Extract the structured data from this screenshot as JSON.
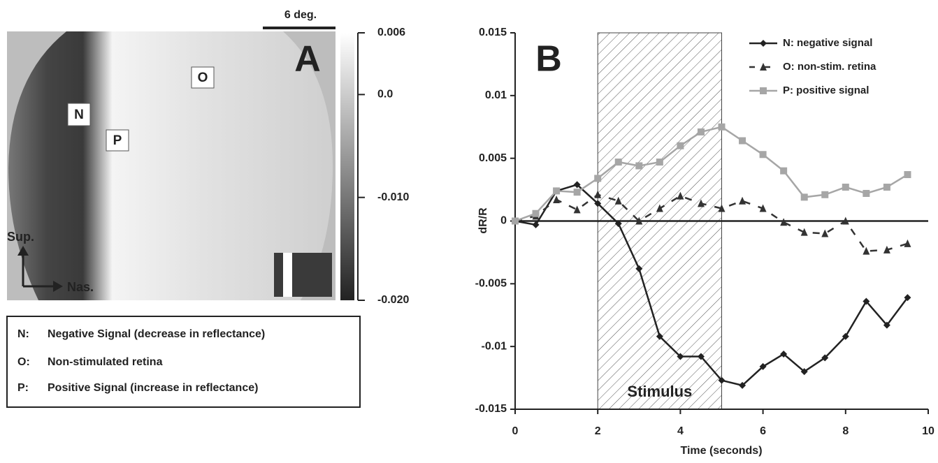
{
  "chart_data": [
    {
      "type": "image",
      "panel_label": "A",
      "scale_bar": "6 deg.",
      "region_labels": [
        "O",
        "N",
        "P"
      ],
      "orientation": [
        "Sup.",
        "Nas."
      ],
      "colorbar": {
        "ylim": [
          -0.02,
          0.006
        ],
        "yticks": [
          0.006,
          {
            "value": 0,
            "label": "0.0"
          },
          {
            "value": -0.01,
            "label": "-0.010"
          },
          {
            "value": -0.02,
            "label": "-0.020"
          }
        ]
      },
      "key": [
        {
          "code": "N:",
          "text": "Negative Signal (decrease in reflectance)"
        },
        {
          "code": "O:",
          "text": "Non-stimulated retina"
        },
        {
          "code": "P:",
          "text": "Positive Signal  (increase in reflectance)"
        }
      ]
    },
    {
      "type": "line",
      "panel_label": "B",
      "xlabel": "Time (seconds)",
      "ylabel": "dR/R",
      "x": [
        0,
        0.5,
        1,
        1.5,
        2,
        2.5,
        3,
        3.5,
        4,
        4.5,
        5,
        5.5,
        6,
        6.5,
        7,
        7.5,
        8,
        8.5,
        9,
        9.5
      ],
      "xlim": [
        0,
        10
      ],
      "xticks": [
        0,
        2,
        4,
        6,
        8,
        10
      ],
      "ylim": [
        -0.015,
        0.015
      ],
      "yticks": [
        0.015,
        0.01,
        0.005,
        0,
        -0.005,
        -0.01,
        -0.015
      ],
      "shaded_region": {
        "label": "Stimulus",
        "x": [
          2,
          5
        ]
      },
      "legend": "upper right",
      "series": [
        {
          "name": "N: negative signal",
          "color": "#222222",
          "marker": "diamond",
          "dashed": false,
          "values": [
            0,
            -0.0003,
            0.0024,
            0.0029,
            0.0014,
            -0.0002,
            -0.0038,
            -0.0092,
            -0.0108,
            -0.0108,
            -0.0127,
            -0.0131,
            -0.0116,
            -0.0106,
            -0.012,
            -0.0109,
            -0.0092,
            -0.0064,
            -0.0083,
            -0.0061
          ]
        },
        {
          "name": "O: non-stim. retina",
          "color": "#333333",
          "marker": "triangle",
          "dashed": true,
          "values": [
            0,
            0.0004,
            0.0017,
            0.0009,
            0.0021,
            0.0016,
            0,
            0.001,
            0.002,
            0.0014,
            0.001,
            0.0016,
            0.001,
            -0.0001,
            -0.0009,
            -0.001,
            0,
            -0.0024,
            -0.0023,
            -0.0018
          ]
        },
        {
          "name": "P: positive signal",
          "color": "#a6a6a6",
          "marker": "square",
          "dashed": false,
          "values": [
            0,
            0.0006,
            0.0024,
            0.0023,
            0.0034,
            0.0047,
            0.0044,
            0.0047,
            0.006,
            0.0071,
            0.0075,
            0.0064,
            0.0053,
            0.004,
            0.0019,
            0.0021,
            0.0027,
            0.0022,
            0.0027,
            0.0037
          ]
        }
      ]
    }
  ]
}
